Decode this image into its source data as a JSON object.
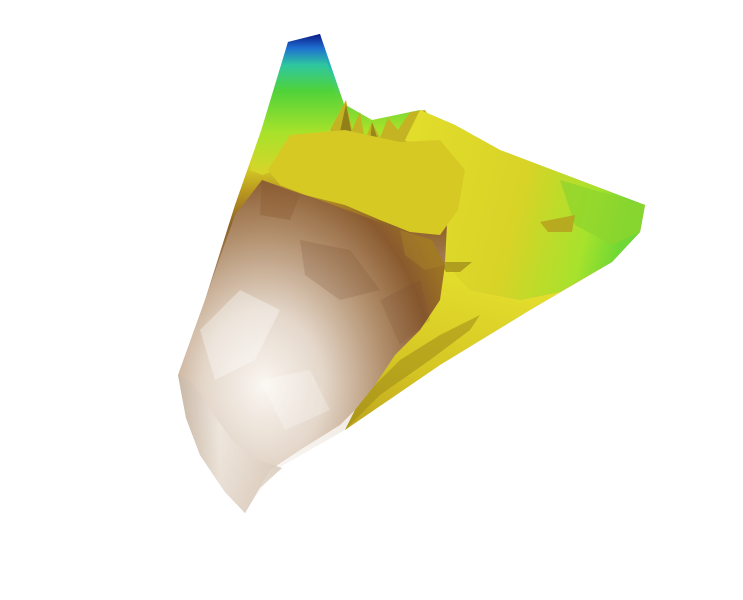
{
  "scene": {
    "background": "#ffffff",
    "colormap": [
      "#0a1a8a",
      "#1f8fd0",
      "#2ec7a0",
      "#5fd33a",
      "#a8e22a",
      "#e3e02a",
      "#d9c227",
      "#a8801c",
      "#8a5a2e",
      "#c9ad95",
      "#f4efe9"
    ]
  }
}
